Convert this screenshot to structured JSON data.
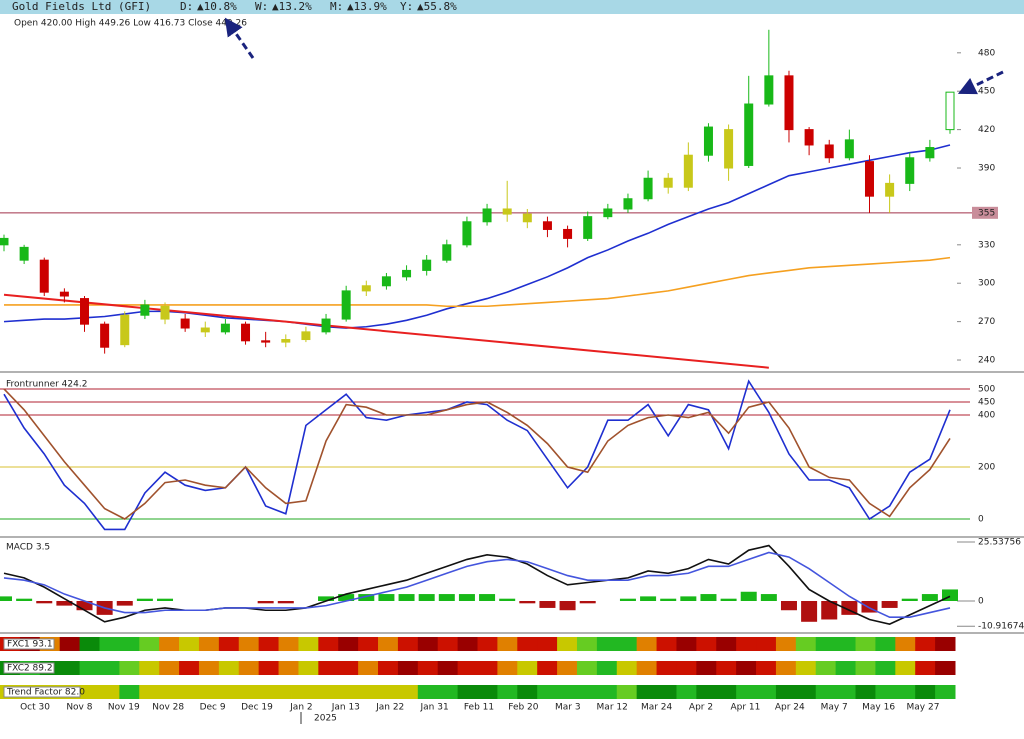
{
  "header": {
    "title": "Gold Fields Ltd (GFI)",
    "changes": [
      {
        "label": "D:",
        "value": "▲10.8%"
      },
      {
        "label": "W:",
        "value": "▲13.2%"
      },
      {
        "label": "M:",
        "value": "▲13.9%"
      },
      {
        "label": "Y:",
        "value": "▲55.8%"
      }
    ],
    "ohlc": "Open 420.00  High 449.26  Low 416.73  Close 449.26"
  },
  "chart_data": [
    {
      "type": "candlestick",
      "ylim": [
        232.2,
        507.2
      ],
      "yticks": [
        240,
        270,
        300,
        330,
        390,
        420,
        450,
        480
      ],
      "price_line": 355,
      "price_line_color": "#a0304a",
      "open": [
        335,
        328,
        318,
        293,
        288,
        268,
        252,
        275,
        282,
        272,
        265,
        262,
        268,
        255,
        254,
        256,
        262,
        272,
        294,
        298,
        305,
        310,
        318,
        330,
        348,
        358,
        354,
        348,
        342,
        335,
        352,
        358,
        366,
        382,
        375,
        400,
        420,
        392,
        440,
        462,
        420,
        408,
        398,
        395,
        368,
        378,
        398,
        420
      ],
      "high": [
        338,
        330,
        320,
        296,
        290,
        270,
        278,
        287,
        285,
        276,
        270,
        272,
        270,
        262,
        260,
        266,
        276,
        298,
        302,
        308,
        314,
        322,
        334,
        352,
        362,
        380,
        358,
        352,
        345,
        356,
        362,
        370,
        388,
        386,
        410,
        425,
        424,
        462,
        498,
        466,
        422,
        412,
        420,
        400,
        385,
        402,
        412,
        449.26
      ],
      "low": [
        325,
        315,
        290,
        285,
        262,
        245,
        250,
        272,
        268,
        262,
        258,
        260,
        252,
        250,
        250,
        254,
        260,
        270,
        290,
        295,
        302,
        306,
        316,
        328,
        345,
        348,
        343,
        336,
        328,
        333,
        350,
        355,
        364,
        370,
        372,
        395,
        380,
        390,
        438,
        410,
        400,
        394,
        396,
        355,
        355,
        372,
        395,
        416.73
      ],
      "close": [
        330,
        318,
        293,
        290,
        268,
        250,
        275,
        283,
        272,
        265,
        262,
        268,
        255,
        254,
        256,
        262,
        272,
        294,
        298,
        305,
        310,
        318,
        330,
        348,
        358,
        354,
        348,
        342,
        335,
        352,
        358,
        366,
        382,
        375,
        400,
        422,
        390,
        440,
        462,
        420,
        408,
        398,
        412,
        368,
        378,
        398,
        406,
        449.26
      ],
      "candle_colors": [
        "#18b818",
        "#18b818",
        "#cc0000",
        "#cc0000",
        "#cc0000",
        "#cc0000",
        "#c8c81a",
        "#18b818",
        "#c8c81a",
        "#cc0000",
        "#c8c81a",
        "#18b818",
        "#cc0000",
        "#cc0000",
        "#c8c81a",
        "#c8c81a",
        "#18b818",
        "#18b818",
        "#c8c81a",
        "#18b818",
        "#18b818",
        "#18b818",
        "#18b818",
        "#18b818",
        "#18b818",
        "#c8c81a",
        "#c8c81a",
        "#cc0000",
        "#cc0000",
        "#18b818",
        "#18b818",
        "#18b818",
        "#18b818",
        "#c8c81a",
        "#c8c81a",
        "#18b818",
        "#c8c81a",
        "#18b818",
        "#18b818",
        "#cc0000",
        "#cc0000",
        "#cc0000",
        "#18b818",
        "#cc0000",
        "#c8c81a",
        "#18b818",
        "#18b818",
        "#18b818"
      ],
      "series": [
        {
          "color": "#1f2fd0",
          "values": [
            270,
            271,
            272,
            272,
            273,
            274,
            276,
            278,
            278,
            277,
            275,
            273,
            272,
            271,
            270,
            268,
            266,
            265,
            266,
            268,
            271,
            275,
            280,
            284,
            288,
            293,
            299,
            305,
            312,
            320,
            326,
            333,
            339,
            346,
            352,
            358,
            363,
            370,
            377,
            384,
            387,
            390,
            393,
            396,
            399,
            402,
            404,
            408
          ]
        },
        {
          "color": "#f5a020",
          "values": [
            283,
            283,
            283,
            283,
            283,
            283,
            283,
            283,
            283,
            283,
            283,
            283,
            283,
            283,
            283,
            283,
            283,
            283,
            283,
            283,
            283,
            283,
            282,
            282,
            282,
            283,
            284,
            285,
            286,
            287,
            288,
            290,
            292,
            294,
            297,
            300,
            303,
            306,
            308,
            310,
            312,
            313,
            314,
            315,
            316,
            317,
            318,
            320
          ]
        }
      ],
      "trend_line": {
        "color": "#e82020",
        "x": [
          0,
          38
        ],
        "values": [
          291,
          234
        ]
      }
    },
    {
      "type": "line",
      "title": "Frontrunner 424.2",
      "ylim": [
        -61.5,
        561.5
      ],
      "yticks": [
        0,
        200,
        400,
        450,
        500
      ],
      "tick_line_colors": [
        "#22aa22",
        "#d8c030",
        "#b02030",
        "#b02030",
        "#b02030"
      ],
      "series": [
        {
          "color": "#1f2fd0",
          "values": [
            480,
            350,
            250,
            130,
            60,
            -40,
            -40,
            100,
            180,
            130,
            110,
            120,
            200,
            50,
            20,
            360,
            420,
            480,
            390,
            380,
            400,
            410,
            420,
            450,
            440,
            380,
            340,
            230,
            120,
            200,
            380,
            380,
            440,
            320,
            440,
            420,
            270,
            530,
            410,
            250,
            150,
            150,
            120,
            0,
            50,
            180,
            230,
            420
          ]
        },
        {
          "color": "#a0522d",
          "values": [
            500,
            420,
            320,
            220,
            130,
            40,
            0,
            60,
            140,
            150,
            130,
            120,
            200,
            120,
            60,
            70,
            300,
            440,
            430,
            400,
            400,
            400,
            420,
            440,
            450,
            410,
            360,
            290,
            200,
            180,
            300,
            360,
            390,
            400,
            390,
            410,
            330,
            430,
            450,
            350,
            200,
            160,
            150,
            60,
            10,
            120,
            190,
            310
          ]
        }
      ]
    },
    {
      "type": "macd",
      "title": "MACD 3.5",
      "ylim": [
        -13.42,
        27.27
      ],
      "yticks": [
        -10.91674,
        0,
        25.53756
      ],
      "histogram": [
        2,
        1,
        -1,
        -2,
        -4,
        -6,
        -2,
        1,
        1,
        0,
        0,
        0,
        0,
        -1,
        -1,
        0,
        2,
        3,
        3,
        3,
        3,
        3,
        3,
        3,
        3,
        1,
        -1,
        -3,
        -4,
        -1,
        0,
        1,
        2,
        1,
        2,
        3,
        1,
        4,
        3,
        -4,
        -9,
        -8,
        -6,
        -5,
        -3,
        1,
        3,
        5
      ],
      "positive_color": "#18b818",
      "negative_color": "#b01010",
      "series": [
        {
          "color": "#111111",
          "values": [
            12,
            10,
            6,
            1,
            -4,
            -9,
            -7,
            -4,
            -3,
            -4,
            -4,
            -3,
            -3,
            -4,
            -4,
            -3,
            0,
            3,
            5,
            7,
            9,
            12,
            15,
            18,
            20,
            19,
            16,
            11,
            7,
            8,
            9,
            10,
            13,
            12,
            14,
            18,
            16,
            22,
            24,
            15,
            5,
            0,
            -4,
            -8,
            -10,
            -6,
            -2,
            2
          ]
        },
        {
          "color": "#4455dd",
          "values": [
            10,
            9,
            7,
            3,
            0,
            -3,
            -5,
            -5,
            -4,
            -4,
            -4,
            -3,
            -3,
            -3,
            -3,
            -3,
            -2,
            0,
            2,
            4,
            6,
            9,
            12,
            15,
            17,
            18,
            17,
            14,
            11,
            9,
            9,
            9,
            11,
            11,
            12,
            15,
            15,
            18,
            21,
            19,
            14,
            8,
            2,
            -3,
            -7,
            -7,
            -5,
            -3
          ]
        }
      ]
    },
    {
      "type": "heatstrip",
      "strips": [
        {
          "label": "FXC1 93.1",
          "colors": [
            "#cc1100",
            "#990000",
            "#e08000",
            "#990000",
            "#0a8a0a",
            "#22b822",
            "#22b822",
            "#66cc22",
            "#e08000",
            "#c8c800",
            "#e08000",
            "#cc1100",
            "#e08000",
            "#cc1100",
            "#e08000",
            "#c8c800",
            "#cc1100",
            "#990000",
            "#cc1100",
            "#e08000",
            "#cc1100",
            "#990000",
            "#cc1100",
            "#990000",
            "#cc1100",
            "#e08000",
            "#cc1100",
            "#cc1100",
            "#c8c800",
            "#66cc22",
            "#22b822",
            "#22b822",
            "#e08000",
            "#cc1100",
            "#990000",
            "#cc1100",
            "#990000",
            "#cc1100",
            "#cc1100",
            "#e08000",
            "#66cc22",
            "#22b822",
            "#22b822",
            "#66cc22",
            "#22b822",
            "#e08000",
            "#cc1100",
            "#990000"
          ]
        },
        {
          "label": "FXC2 89.2",
          "colors": [
            "#0a8a0a",
            "#22b822",
            "#0a8a0a",
            "#0a8a0a",
            "#22b822",
            "#22b822",
            "#66cc22",
            "#c8c800",
            "#e08000",
            "#cc1100",
            "#e08000",
            "#c8c800",
            "#e08000",
            "#cc1100",
            "#e08000",
            "#c8c800",
            "#cc1100",
            "#cc1100",
            "#e08000",
            "#cc1100",
            "#990000",
            "#cc1100",
            "#990000",
            "#cc1100",
            "#cc1100",
            "#e08000",
            "#c8c800",
            "#cc1100",
            "#e08000",
            "#66cc22",
            "#22b822",
            "#c8c800",
            "#e08000",
            "#cc1100",
            "#cc1100",
            "#990000",
            "#cc1100",
            "#990000",
            "#cc1100",
            "#e08000",
            "#c8c800",
            "#66cc22",
            "#22b822",
            "#66cc22",
            "#22b822",
            "#c8c800",
            "#cc1100",
            "#990000"
          ]
        },
        {
          "label": "Trend Factor 82.0",
          "colors": [
            "#c8c800",
            "#c8c800",
            "#c8c800",
            "#c8c800",
            "#c8c800",
            "#c8c800",
            "#22b822",
            "#c8c800",
            "#c8c800",
            "#c8c800",
            "#c8c800",
            "#c8c800",
            "#c8c800",
            "#c8c800",
            "#c8c800",
            "#c8c800",
            "#c8c800",
            "#c8c800",
            "#c8c800",
            "#c8c800",
            "#c8c800",
            "#22b822",
            "#22b822",
            "#0a8a0a",
            "#0a8a0a",
            "#22b822",
            "#0a8a0a",
            "#22b822",
            "#22b822",
            "#22b822",
            "#22b822",
            "#66cc22",
            "#0a8a0a",
            "#0a8a0a",
            "#22b822",
            "#0a8a0a",
            "#0a8a0a",
            "#22b822",
            "#22b822",
            "#0a8a0a",
            "#0a8a0a",
            "#22b822",
            "#22b822",
            "#0a8a0a",
            "#22b822",
            "#22b822",
            "#0a8a0a",
            "#22b822"
          ]
        }
      ]
    }
  ],
  "x_axis": {
    "labels": [
      "Oct 30",
      "Nov 8",
      "Nov 19",
      "Nov 28",
      "Dec 9",
      "Dec 19",
      "Jan 2",
      "Jan 13",
      "Jan 22",
      "Jan 31",
      "Feb 11",
      "Feb 20",
      "Mar 3",
      "Mar 12",
      "Mar 24",
      "Apr 2",
      "Apr 11",
      "Apr 24",
      "May 7",
      "May 16",
      "May 27"
    ],
    "year": "2025"
  }
}
